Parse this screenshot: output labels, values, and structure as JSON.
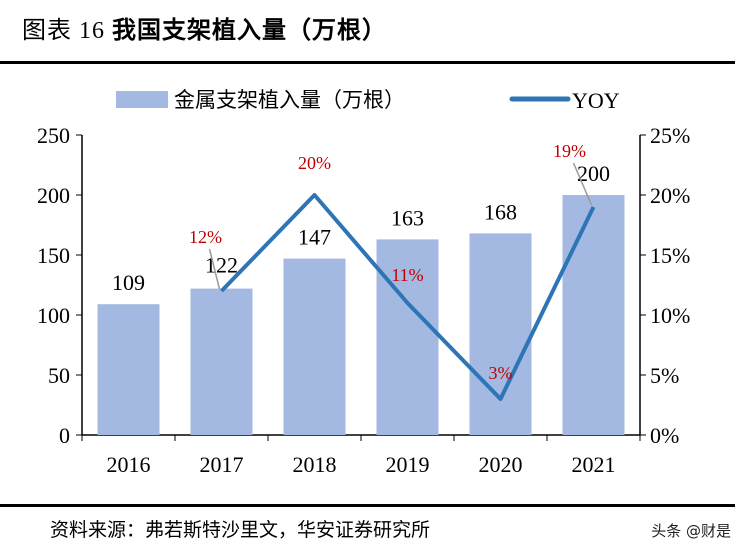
{
  "title": {
    "prefix": "图表 16",
    "main": "我国支架植入量（万根）"
  },
  "source": "资料来源：弗若斯特沙里文，华安证券研究所",
  "watermark": "头条 @财是",
  "colors": {
    "bar": "#a3b9e1",
    "line": "#2e75b6",
    "yoy_label": "#c00000"
  },
  "chart_data": {
    "type": "bar+line",
    "categories": [
      "2016",
      "2017",
      "2018",
      "2019",
      "2020",
      "2021"
    ],
    "series": [
      {
        "name": "金属支架植入量（万根）",
        "type": "bar",
        "axis": "left",
        "values": [
          109,
          122,
          147,
          163,
          168,
          200
        ]
      },
      {
        "name": "YOY",
        "type": "line",
        "axis": "right",
        "values": [
          null,
          12,
          20,
          11,
          3,
          19
        ],
        "labels": [
          "",
          "12%",
          "20%",
          "11%",
          "3%",
          "19%"
        ]
      }
    ],
    "left_axis": {
      "range": [
        0,
        250
      ],
      "ticks": [
        "0",
        "50",
        "100",
        "150",
        "200",
        "250"
      ]
    },
    "right_axis": {
      "range": [
        0,
        25
      ],
      "ticks": [
        "0%",
        "5%",
        "10%",
        "15%",
        "20%",
        "25%"
      ]
    },
    "legend": "top",
    "grid": false
  }
}
